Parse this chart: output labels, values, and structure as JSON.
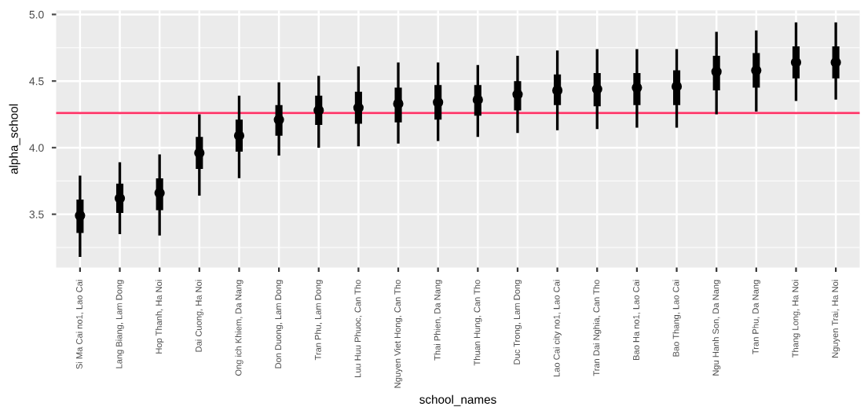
{
  "chart_data": {
    "type": "box",
    "xlabel": "school_names",
    "ylabel": "alpha_school",
    "categories": [
      "Si Ma Cai no1, Lao Cai",
      "Lang Biang, Lam Dong",
      "Hop Thanh, Ha Noi",
      "Dai Cuong, Ha Noi",
      "Ong ich Khiem, Da Nang",
      "Don Duong, Lam Dong",
      "Tran Phu, Lam Dong",
      "Luu Huu Phuoc, Can Tho",
      "Nguyen Viet Hong, Can Tho",
      "Thai Phien, Da Nang",
      "Thuan Hung, Can Tho",
      "Duc Trong, Lam Dong",
      "Lao Cai city no1, Lao Cai",
      "Tran Dai Nghia, Can Tho",
      "Bao Ha no1, Lao Cai",
      "Bao Thang, Lao Cai",
      "Ngu Hanh Son, Da Nang",
      "Tran Phu, Da Nang",
      "Thang Long, Ha Noi",
      "Nguyen Trai, Ha Noi"
    ],
    "boxes": [
      {
        "low": 3.19,
        "q1": 3.36,
        "median": 3.49,
        "q3": 3.61,
        "high": 3.78
      },
      {
        "low": 3.36,
        "q1": 3.51,
        "median": 3.62,
        "q3": 3.73,
        "high": 3.88
      },
      {
        "low": 3.35,
        "q1": 3.53,
        "median": 3.66,
        "q3": 3.77,
        "high": 3.94
      },
      {
        "low": 3.65,
        "q1": 3.84,
        "median": 3.96,
        "q3": 4.08,
        "high": 4.24
      },
      {
        "low": 3.78,
        "q1": 3.97,
        "median": 4.09,
        "q3": 4.21,
        "high": 4.38
      },
      {
        "low": 3.95,
        "q1": 4.09,
        "median": 4.21,
        "q3": 4.32,
        "high": 4.48
      },
      {
        "low": 4.01,
        "q1": 4.17,
        "median": 4.28,
        "q3": 4.39,
        "high": 4.53
      },
      {
        "low": 4.02,
        "q1": 4.18,
        "median": 4.3,
        "q3": 4.42,
        "high": 4.6
      },
      {
        "low": 4.04,
        "q1": 4.19,
        "median": 4.33,
        "q3": 4.45,
        "high": 4.63
      },
      {
        "low": 4.06,
        "q1": 4.21,
        "median": 4.34,
        "q3": 4.47,
        "high": 4.63
      },
      {
        "low": 4.09,
        "q1": 4.24,
        "median": 4.36,
        "q3": 4.47,
        "high": 4.61
      },
      {
        "low": 4.12,
        "q1": 4.28,
        "median": 4.4,
        "q3": 4.5,
        "high": 4.68
      },
      {
        "low": 4.14,
        "q1": 4.32,
        "median": 4.43,
        "q3": 4.55,
        "high": 4.72
      },
      {
        "low": 4.15,
        "q1": 4.31,
        "median": 4.44,
        "q3": 4.56,
        "high": 4.73
      },
      {
        "low": 4.16,
        "q1": 4.32,
        "median": 4.45,
        "q3": 4.56,
        "high": 4.73
      },
      {
        "low": 4.16,
        "q1": 4.32,
        "median": 4.46,
        "q3": 4.58,
        "high": 4.73
      },
      {
        "low": 4.26,
        "q1": 4.43,
        "median": 4.57,
        "q3": 4.69,
        "high": 4.86
      },
      {
        "low": 4.28,
        "q1": 4.45,
        "median": 4.58,
        "q3": 4.71,
        "high": 4.87
      },
      {
        "low": 4.36,
        "q1": 4.52,
        "median": 4.64,
        "q3": 4.76,
        "high": 4.93
      },
      {
        "low": 4.37,
        "q1": 4.52,
        "median": 4.64,
        "q3": 4.76,
        "high": 4.93
      }
    ],
    "color": "#000000",
    "ylim": [
      3.1,
      5.03
    ],
    "yticks": [
      3.5,
      {
        "value": 4.0,
        "label": "4.0"
      },
      4.5,
      {
        "value": 5.0,
        "label": "5.0"
      }
    ],
    "ref_lines": [
      {
        "axis": "y",
        "value": 4.26,
        "color": "#ff3366"
      }
    ],
    "grid": true
  }
}
